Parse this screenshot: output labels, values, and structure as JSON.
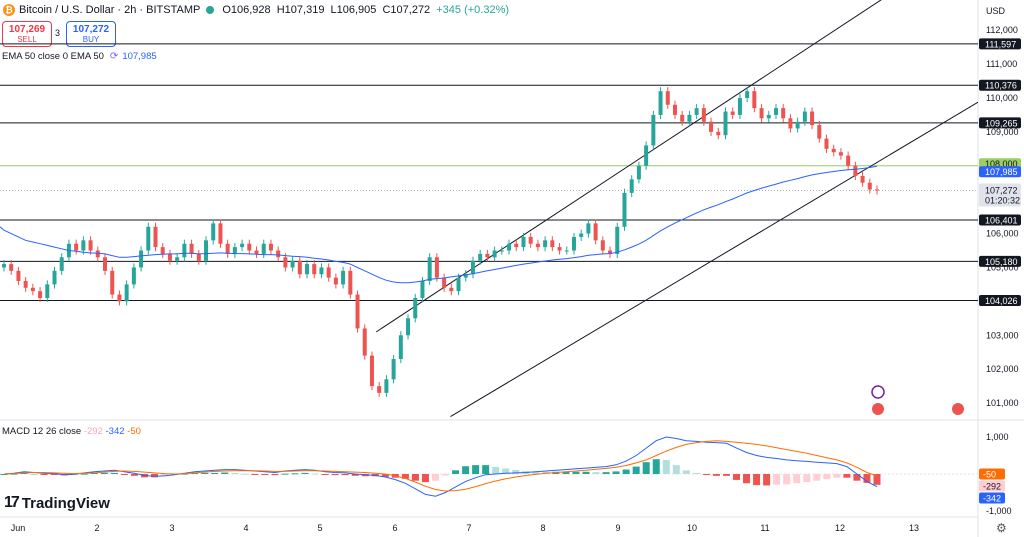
{
  "header": {
    "symbol": "Bitcoin / U.S. Dollar · 2h · BITSTAMP",
    "open": "O106,928",
    "high": "H107,319",
    "low": "L106,905",
    "close": "C107,272",
    "change": "+345 (+0.32%)",
    "coin_icon": "bitcoin-icon"
  },
  "trade": {
    "sell_price": "107,269",
    "sell_label": "SELL",
    "spread": "3",
    "buy_price": "107,272",
    "buy_label": "BUY"
  },
  "ema_legend": {
    "label": "EMA 50 close 0 EMA 50",
    "value": "107,985"
  },
  "macd_legend": {
    "label": "MACD 12 26 close",
    "hist": "-292",
    "macd": "-342",
    "signal": "-50"
  },
  "axis": {
    "currency": "USD"
  },
  "logo": {
    "text": "TradingView"
  },
  "colors": {
    "up": "#26a69a",
    "down": "#ef5350",
    "ema": "#2962ff",
    "macd": "#2962ff",
    "signal": "#ff6d00",
    "hist_pos": "#26a69a",
    "hist_neg": "#ef5350"
  },
  "chart_data": {
    "type": "candlestick",
    "price_axis": {
      "ticks": [
        101000,
        102000,
        103000,
        104000,
        105000,
        106000,
        107000,
        108000,
        109000,
        110000,
        111000,
        112000
      ],
      "tick_labels": [
        "101,000",
        "102,000",
        "103,000",
        "104,000",
        "105,000",
        "106,000",
        "107,000",
        "108,000",
        "109,000",
        "110,000",
        "111,000",
        "112,000"
      ],
      "ylim": [
        100500,
        112300
      ]
    },
    "x_axis": {
      "ticks": [
        "Jun",
        "2",
        "3",
        "4",
        "5",
        "6",
        "7",
        "8",
        "9",
        "10",
        "11",
        "12",
        "13"
      ]
    },
    "horizontal_levels": [
      111597,
      110376,
      109265,
      106401,
      105180,
      104026
    ],
    "level_labels": [
      "111,597",
      "110,376",
      "109,265",
      "106,401",
      "105,180",
      "104,026"
    ],
    "ema_level": {
      "value": 108000,
      "label": "108,000"
    },
    "ema_value": {
      "value": 107985,
      "label": "107,985"
    },
    "last_price": {
      "value": 107272,
      "label": "107,272",
      "countdown": "01:20:32"
    },
    "channel": {
      "upper": [
        [
          4.75,
          103100
        ],
        [
          9.9,
          110500
        ]
      ],
      "lower": [
        [
          5.75,
          100600
        ],
        [
          12.5,
          109400
        ]
      ]
    },
    "closes": [
      105100,
      104900,
      104600,
      104400,
      104300,
      104100,
      104500,
      104900,
      105300,
      105700,
      105500,
      105800,
      105500,
      105300,
      104900,
      104200,
      104000,
      104500,
      105000,
      105500,
      106200,
      105600,
      105400,
      105200,
      105300,
      105700,
      105400,
      105200,
      105800,
      106300,
      105700,
      105400,
      105600,
      105700,
      105500,
      105400,
      105700,
      105500,
      105300,
      105000,
      105200,
      104800,
      105100,
      104800,
      105000,
      104700,
      104500,
      104900,
      104200,
      103200,
      102400,
      101500,
      101300,
      101700,
      102300,
      103000,
      103500,
      104100,
      104600,
      105300,
      104700,
      104400,
      104300,
      104700,
      104800,
      105200,
      105400,
      105300,
      105500,
      105500,
      105700,
      105600,
      105900,
      105700,
      105600,
      105800,
      105600,
      105500,
      105500,
      105900,
      106000,
      106300,
      105800,
      105500,
      105400,
      106200,
      107200,
      107600,
      108000,
      108600,
      109500,
      110200,
      109800,
      109500,
      109300,
      109500,
      109700,
      109300,
      109000,
      108900,
      109600,
      109500,
      110000,
      110200,
      109700,
      109400,
      109500,
      109700,
      109400,
      109100,
      109300,
      109600,
      109200,
      108800,
      108500,
      108400,
      108300,
      108000,
      107700,
      107500,
      107300,
      107272
    ],
    "ema50": [
      106100,
      106000,
      105900,
      105800,
      105750,
      105700,
      105650,
      105600,
      105550,
      105500,
      105480,
      105450,
      105430,
      105420,
      105400,
      105350,
      105300,
      105300,
      105320,
      105340,
      105360,
      105380,
      105390,
      105400,
      105400,
      105420,
      105420,
      105400,
      105410,
      105420,
      105430,
      105420,
      105410,
      105410,
      105400,
      105390,
      105380,
      105380,
      105370,
      105350,
      105330,
      105320,
      105300,
      105270,
      105250,
      105220,
      105180,
      105150,
      105100,
      105000,
      104900,
      104800,
      104700,
      104620,
      104570,
      104550,
      104550,
      104570,
      104600,
      104650,
      104670,
      104690,
      104720,
      104750,
      104780,
      104820,
      104860,
      104900,
      104940,
      104980,
      105020,
      105060,
      105100,
      105130,
      105160,
      105190,
      105220,
      105240,
      105260,
      105290,
      105320,
      105360,
      105380,
      105400,
      105410,
      105450,
      105520,
      105600,
      105690,
      105800,
      105940,
      106080,
      106200,
      106310,
      106410,
      106510,
      106610,
      106700,
      106780,
      106850,
      106940,
      107020,
      107110,
      107200,
      107270,
      107340,
      107400,
      107460,
      107520,
      107570,
      107620,
      107680,
      107730,
      107770,
      107800,
      107830,
      107860,
      107880,
      107900,
      107920,
      107950,
      107985
    ],
    "macd": [
      0,
      20,
      60,
      40,
      20,
      10,
      -20,
      -10,
      30,
      60,
      80,
      100,
      60,
      20,
      -40,
      -60,
      -50,
      -20,
      20,
      60,
      80,
      100,
      120,
      120,
      100,
      80,
      60,
      40,
      80,
      100,
      120,
      100,
      60,
      40,
      30,
      0,
      -20,
      -40,
      -80,
      -150,
      -250,
      -400,
      -550,
      -600,
      -500,
      -350,
      -200,
      -100,
      -20,
      0,
      20,
      30,
      40,
      60,
      80,
      100,
      120,
      140,
      160,
      180,
      200,
      250,
      350,
      500,
      700,
      900,
      1000,
      960,
      900,
      880,
      860,
      850,
      830,
      700,
      580,
      500,
      450,
      420,
      380,
      360,
      340,
      320,
      300,
      280,
      200,
      0,
      -200,
      -342
    ],
    "signal": [
      0,
      10,
      30,
      40,
      40,
      30,
      20,
      10,
      20,
      30,
      50,
      70,
      80,
      70,
      50,
      30,
      10,
      0,
      10,
      30,
      50,
      70,
      80,
      90,
      90,
      90,
      80,
      70,
      70,
      80,
      90,
      90,
      80,
      70,
      60,
      50,
      40,
      20,
      0,
      -50,
      -120,
      -220,
      -330,
      -420,
      -460,
      -450,
      -410,
      -340,
      -260,
      -190,
      -130,
      -80,
      -40,
      -10,
      20,
      40,
      60,
      80,
      100,
      130,
      150,
      180,
      230,
      300,
      380,
      500,
      620,
      720,
      800,
      850,
      880,
      900,
      880,
      860,
      830,
      800,
      760,
      710,
      660,
      610,
      560,
      500,
      440,
      380,
      300,
      180,
      40,
      -50
    ],
    "macd_axis": {
      "ticks": [
        1000,
        0,
        -1000
      ],
      "tick_labels": [
        "1,000",
        "0",
        "-1,000"
      ]
    },
    "macd_labels": {
      "signal": "-50",
      "hist": "-292",
      "macd": "-342"
    }
  }
}
